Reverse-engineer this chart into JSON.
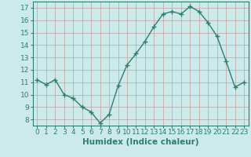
{
  "x": [
    0,
    1,
    2,
    3,
    4,
    5,
    6,
    7,
    8,
    9,
    10,
    11,
    12,
    13,
    14,
    15,
    16,
    17,
    18,
    19,
    20,
    21,
    22,
    23
  ],
  "y": [
    11.2,
    10.8,
    11.2,
    10.0,
    9.7,
    9.0,
    8.6,
    7.7,
    8.4,
    10.7,
    12.4,
    13.3,
    14.3,
    15.5,
    16.5,
    16.7,
    16.5,
    17.1,
    16.7,
    15.8,
    14.7,
    12.7,
    10.6,
    11.0
  ],
  "line_color": "#2e7d6e",
  "marker": "+",
  "marker_size": 4,
  "bg_color": "#cceaea",
  "grid_color": "#c0a0a0",
  "xlabel": "Humidex (Indice chaleur)",
  "xlim": [
    -0.5,
    23.5
  ],
  "ylim": [
    7.5,
    17.5
  ],
  "yticks": [
    8,
    9,
    10,
    11,
    12,
    13,
    14,
    15,
    16,
    17
  ],
  "xticks": [
    0,
    1,
    2,
    3,
    4,
    5,
    6,
    7,
    8,
    9,
    10,
    11,
    12,
    13,
    14,
    15,
    16,
    17,
    18,
    19,
    20,
    21,
    22,
    23
  ],
  "tick_label_fontsize": 6.5,
  "xlabel_fontsize": 7.5
}
